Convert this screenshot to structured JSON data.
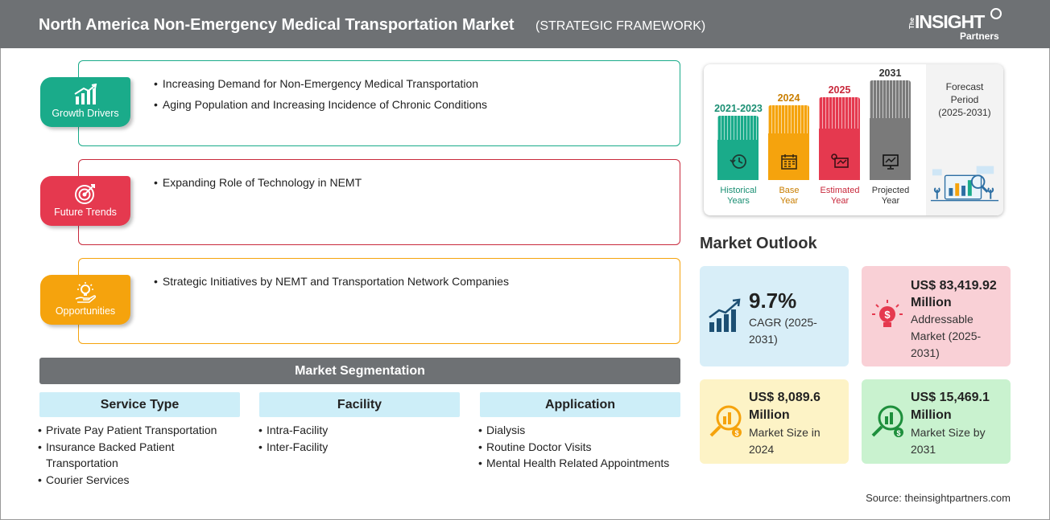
{
  "header": {
    "title": "North America Non-Emergency Medical Transportation Market",
    "subtitle": "(STRATEGIC FRAMEWORK)",
    "logo": {
      "the": "The",
      "insight": "INSIGHT",
      "partners": "Partners"
    }
  },
  "framework": {
    "growth_drivers": {
      "label": "Growth Drivers",
      "color": "#1aab8a",
      "items": [
        "Increasing Demand for Non-Emergency Medical Transportation",
        "Aging Population and Increasing Incidence of Chronic Conditions"
      ]
    },
    "future_trends": {
      "label": "Future Trends",
      "color": "#e5394f",
      "items": [
        "Expanding Role of Technology in NEMT"
      ]
    },
    "opportunities": {
      "label": "Opportunities",
      "color": "#f5a30d",
      "items": [
        "Strategic Initiatives by NEMT and Transportation Network Companies"
      ]
    }
  },
  "segmentation": {
    "title": "Market Segmentation",
    "columns": [
      {
        "heading": "Service Type",
        "items": [
          "Private Pay Patient Transportation",
          "Insurance Backed Patient Transportation",
          "Courier Services"
        ]
      },
      {
        "heading": "Facility",
        "items": [
          "Intra-Facility",
          "Inter-Facility"
        ]
      },
      {
        "heading": "Application",
        "items": [
          "Dialysis",
          "Routine Doctor Visits",
          "Mental Health Related Appointments"
        ]
      }
    ]
  },
  "timeline": {
    "periods": [
      {
        "year": "2021-2023",
        "label_line1": "Historical",
        "label_line2": "Years",
        "color": "#1aab8a",
        "icon": "history-icon"
      },
      {
        "year": "2024",
        "label_line1": "Base",
        "label_line2": "Year",
        "color": "#f5a30d",
        "icon": "calendar-icon"
      },
      {
        "year": "2025",
        "label_line1": "Estimated",
        "label_line2": "Year",
        "color": "#e5394f",
        "icon": "estimate-icon"
      },
      {
        "year": "2031",
        "label_line1": "Projected",
        "label_line2": "Year",
        "color": "#7a7a7a",
        "icon": "projection-icon"
      }
    ],
    "forecast": {
      "line1": "Forecast",
      "line2": "Period",
      "line3": "(2025-2031)"
    }
  },
  "outlook": {
    "title": "Market Outlook",
    "cards": [
      {
        "big1": "9.7%",
        "big2": "",
        "desc1": "CAGR (2025-",
        "desc2": "2031)",
        "desc3": "",
        "bg": "#d8eef8",
        "icon": "growth-chart-icon"
      },
      {
        "big1": "US$ 83,419.92",
        "big2": "Million",
        "desc1": "Addressable",
        "desc2": "Market (2025-",
        "desc3": "2031)",
        "bg": "#f9d0d6",
        "icon": "lightbulb-dollar-icon"
      },
      {
        "big1": "US$ 8,089.6",
        "big2": "Million",
        "desc1": "Market Size in",
        "desc2": "2024",
        "desc3": "",
        "bg": "#fdf3c6",
        "icon": "market-size-icon"
      },
      {
        "big1": "US$ 15,469.1",
        "big2": "Million",
        "desc1": "Market Size by",
        "desc2": "2031",
        "desc3": "",
        "bg": "#c9f2cf",
        "icon": "market-forecast-icon"
      }
    ]
  },
  "source": "Source: theinsightpartners.com"
}
